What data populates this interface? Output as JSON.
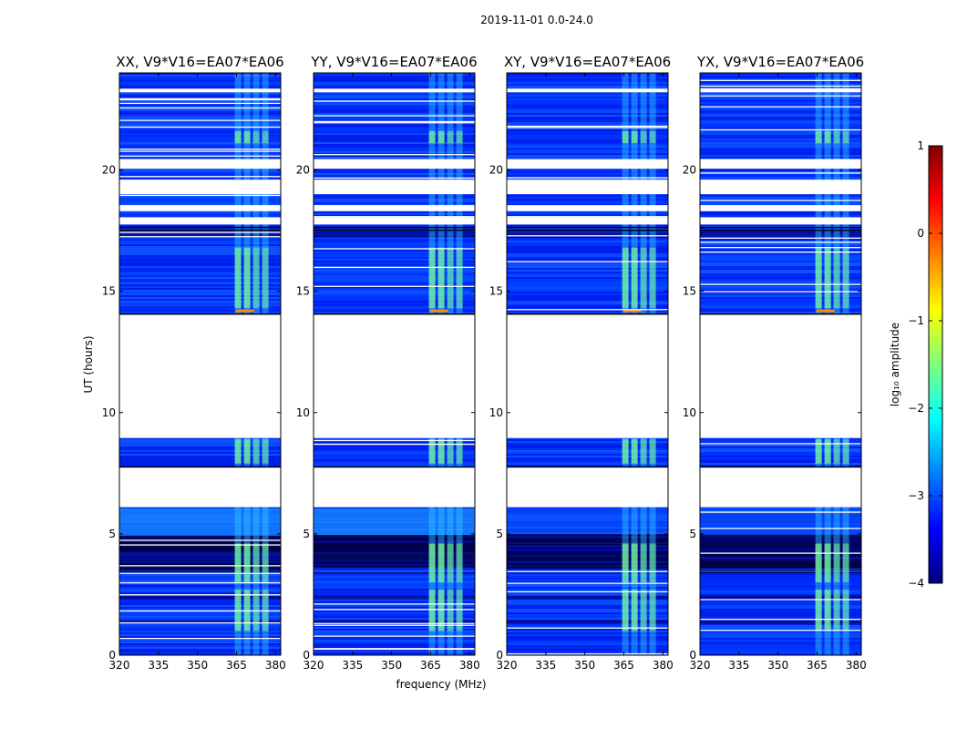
{
  "chart_data": {
    "type": "heatmap",
    "suptitle": "2019-11-01 0.0-24.0",
    "xlabel": "frequency (MHz)",
    "ylabel": "UT (hours)",
    "xlim": [
      320,
      382
    ],
    "ylim": [
      0,
      24
    ],
    "xticks": [
      320,
      335,
      350,
      365,
      380
    ],
    "yticks": [
      0,
      5,
      10,
      15,
      20
    ],
    "panels": [
      {
        "title": "XX, V9*V16=EA07*EA06",
        "pol": "XX"
      },
      {
        "title": "YY, V9*V16=EA07*EA06",
        "pol": "YY"
      },
      {
        "title": "XY, V9*V16=EA07*EA06",
        "pol": "XY"
      },
      {
        "title": "YX, V9*V16=EA07*EA06",
        "pol": "YX"
      }
    ],
    "data_gaps_hours": [
      [
        8.95,
        14.05
      ],
      [
        6.1,
        7.75
      ],
      [
        17.75,
        18.05
      ],
      [
        18.3,
        18.55
      ],
      [
        19.0,
        19.6
      ],
      [
        20.05,
        20.45
      ],
      [
        23.2,
        23.35
      ]
    ],
    "rfi_band_mhz": [
      364,
      378
    ],
    "colorbar": {
      "label": "log₁₀ amplitude",
      "range": [
        -4,
        1
      ],
      "ticks": [
        -4,
        -3,
        -2,
        -1,
        0,
        1
      ],
      "tick_labels": [
        "−4",
        "−3",
        "−2",
        "−1",
        "0",
        "1"
      ],
      "colormap": "jet"
    }
  }
}
